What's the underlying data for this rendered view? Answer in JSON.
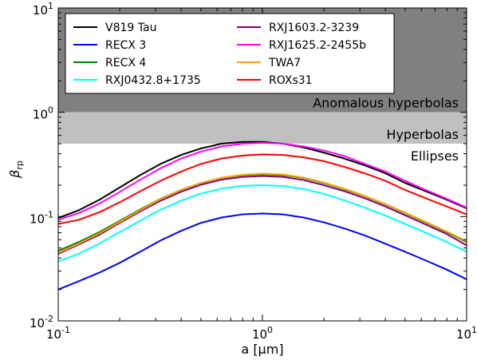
{
  "chart_data": {
    "type": "line",
    "xlabel": "a [μm]",
    "ylabel": "β",
    "ylabel_sub": "rp",
    "xscale": "log",
    "yscale": "log",
    "xlim": [
      0.1,
      10
    ],
    "ylim": [
      0.01,
      10
    ],
    "grid": false,
    "legend_position": "top",
    "x_ticks": [
      {
        "value": 0.1,
        "base": "10",
        "exp": "-1"
      },
      {
        "value": 1,
        "base": "10",
        "exp": "0"
      },
      {
        "value": 10,
        "base": "10",
        "exp": "1"
      }
    ],
    "y_ticks": [
      {
        "value": 0.01,
        "base": "10",
        "exp": "-2"
      },
      {
        "value": 0.1,
        "base": "10",
        "exp": "-1"
      },
      {
        "value": 1,
        "base": "10",
        "exp": "0"
      },
      {
        "value": 10,
        "base": "10",
        "exp": "1"
      }
    ],
    "regions": [
      {
        "label": "Anomalous hyperbolas",
        "y_range": [
          1,
          10
        ],
        "color": "#808080"
      },
      {
        "label": "Hyperbolas",
        "y_range": [
          0.5,
          1
        ],
        "color": "#c0c0c0"
      },
      {
        "label": "Ellipses",
        "y_range": [
          0.01,
          0.5
        ],
        "color": "#ffffff"
      }
    ],
    "x": [
      0.1,
      0.126,
      0.159,
      0.2,
      0.252,
      0.317,
      0.4,
      0.5,
      0.63,
      0.8,
      1.0,
      1.26,
      1.59,
      2.0,
      2.52,
      3.17,
      4.0,
      5.0,
      6.3,
      8.0,
      10.0
    ],
    "series": [
      {
        "name": "V819 Tau",
        "color": "#000000",
        "values": [
          0.097,
          0.115,
          0.145,
          0.19,
          0.25,
          0.32,
          0.39,
          0.45,
          0.5,
          0.52,
          0.52,
          0.5,
          0.46,
          0.41,
          0.36,
          0.31,
          0.26,
          0.21,
          0.175,
          0.145,
          0.12
        ]
      },
      {
        "name": "RECX 3",
        "color": "#0000ff",
        "values": [
          0.02,
          0.024,
          0.029,
          0.036,
          0.046,
          0.059,
          0.073,
          0.087,
          0.098,
          0.105,
          0.107,
          0.105,
          0.098,
          0.088,
          0.077,
          0.066,
          0.055,
          0.046,
          0.038,
          0.031,
          0.025
        ]
      },
      {
        "name": "RECX 4",
        "color": "#008000",
        "values": [
          0.047,
          0.057,
          0.071,
          0.091,
          0.117,
          0.148,
          0.18,
          0.21,
          0.235,
          0.25,
          0.255,
          0.25,
          0.235,
          0.21,
          0.183,
          0.157,
          0.131,
          0.108,
          0.088,
          0.071,
          0.057
        ]
      },
      {
        "name": "RXJ0432.8+1735",
        "color": "#00ffff",
        "values": [
          0.037,
          0.044,
          0.055,
          0.071,
          0.091,
          0.116,
          0.142,
          0.166,
          0.185,
          0.197,
          0.2,
          0.196,
          0.184,
          0.165,
          0.143,
          0.122,
          0.102,
          0.085,
          0.07,
          0.057,
          0.046
        ]
      },
      {
        "name": "RXJ1603.2-3239",
        "color": "#800080",
        "values": [
          0.044,
          0.054,
          0.067,
          0.087,
          0.112,
          0.142,
          0.173,
          0.202,
          0.226,
          0.24,
          0.245,
          0.24,
          0.224,
          0.2,
          0.175,
          0.15,
          0.125,
          0.103,
          0.084,
          0.068,
          0.053
        ]
      },
      {
        "name": "RXJ1625.2-2455b",
        "color": "#ff00ff",
        "values": [
          0.093,
          0.108,
          0.133,
          0.172,
          0.225,
          0.29,
          0.36,
          0.42,
          0.47,
          0.5,
          0.51,
          0.5,
          0.47,
          0.43,
          0.38,
          0.32,
          0.27,
          0.22,
          0.18,
          0.148,
          0.122
        ]
      },
      {
        "name": "TWA7",
        "color": "#ffa500",
        "values": [
          0.045,
          0.055,
          0.069,
          0.089,
          0.115,
          0.147,
          0.18,
          0.21,
          0.236,
          0.252,
          0.258,
          0.253,
          0.237,
          0.212,
          0.185,
          0.158,
          0.132,
          0.109,
          0.089,
          0.072,
          0.058
        ]
      },
      {
        "name": "ROXs31",
        "color": "#ff0000",
        "values": [
          0.085,
          0.093,
          0.11,
          0.137,
          0.175,
          0.22,
          0.27,
          0.32,
          0.36,
          0.385,
          0.395,
          0.39,
          0.37,
          0.34,
          0.3,
          0.26,
          0.22,
          0.18,
          0.15,
          0.125,
          0.105
        ]
      }
    ]
  }
}
